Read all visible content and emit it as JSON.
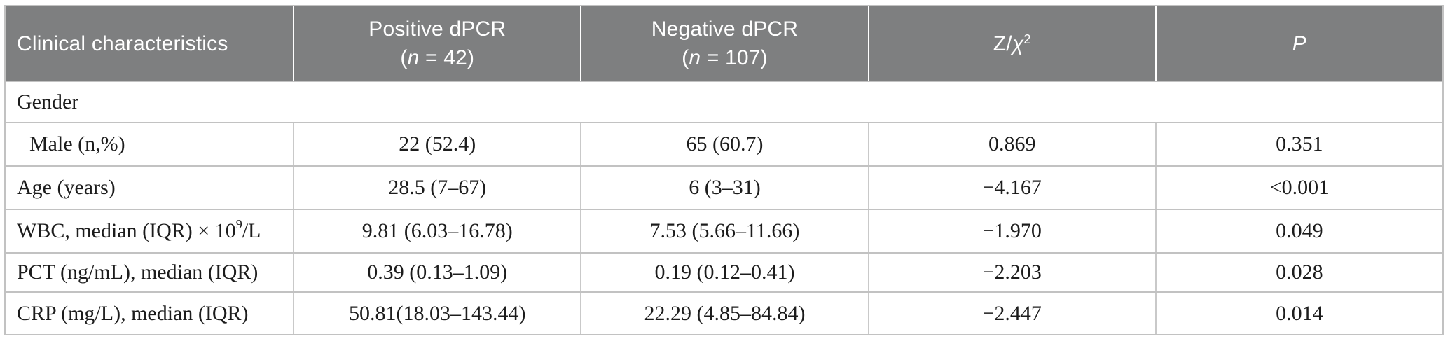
{
  "header": {
    "col1": "Clinical characteristics",
    "col2": {
      "line1": "Positive dPCR",
      "open": "(",
      "n": "n",
      "rest": " = 42)"
    },
    "col3": {
      "line1": "Negative dPCR",
      "open": "(",
      "n": "n",
      "rest": " = 107)"
    },
    "col4": {
      "base": "Z/",
      "chi": "χ",
      "sup": "2"
    },
    "col5": {
      "label": "P"
    }
  },
  "section_row": {
    "label": "Gender"
  },
  "rows": [
    {
      "label": "Male (n,%)",
      "positive": "22 (52.4)",
      "negative": "65 (60.7)",
      "z": "0.869",
      "p": "0.351"
    },
    {
      "label": "Age (years)",
      "positive": "28.5 (7–67)",
      "negative": "6 (3–31)",
      "z": "−4.167",
      "p": "<0.001"
    },
    {
      "label_pre": "WBC, median (IQR) × 10",
      "label_sup": "9",
      "label_post": "/L",
      "positive": "9.81 (6.03–16.78)",
      "negative": "7.53 (5.66–11.66)",
      "z": "−1.970",
      "p": "0.049"
    },
    {
      "label": "PCT (ng/mL), median (IQR)",
      "positive": "0.39 (0.13–1.09)",
      "negative": "0.19 (0.12–0.41)",
      "z": "−2.203",
      "p": "0.028"
    },
    {
      "label": "CRP (mg/L), median (IQR)",
      "positive": "50.81(18.03–143.44)",
      "negative": "22.29 (4.85–84.84)",
      "z": "−2.447",
      "p": "0.014"
    }
  ],
  "colors": {
    "header_bg": "#7e7f80",
    "header_text": "#ffffff",
    "grid_line": "#c2c2c2",
    "body_text": "#1c1c1c"
  }
}
